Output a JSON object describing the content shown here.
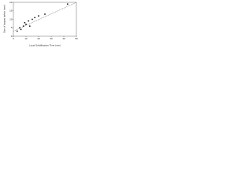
{
  "chart_data": {
    "type": "scatter",
    "x_label": "Local Solidification Time (min)",
    "y_label": "Size of largest defect (mm)",
    "x": [
      3,
      5,
      6,
      8,
      9,
      10,
      12,
      13,
      15,
      17,
      20,
      25,
      43
    ],
    "values": [
      3,
      5,
      4,
      6,
      8,
      7,
      9,
      6,
      10,
      11,
      12,
      13,
      19
    ],
    "color": "#111111",
    "trend_line": {
      "x": [
        0,
        50
      ],
      "y": [
        3,
        20
      ],
      "color": "#333333"
    },
    "xlim": [
      0,
      50
    ],
    "xticks": [
      0,
      10,
      20,
      30,
      40,
      50
    ],
    "ylim": [
      0,
      20
    ],
    "yticks": [
      0,
      5,
      10,
      15,
      20
    ],
    "grid": false
  }
}
